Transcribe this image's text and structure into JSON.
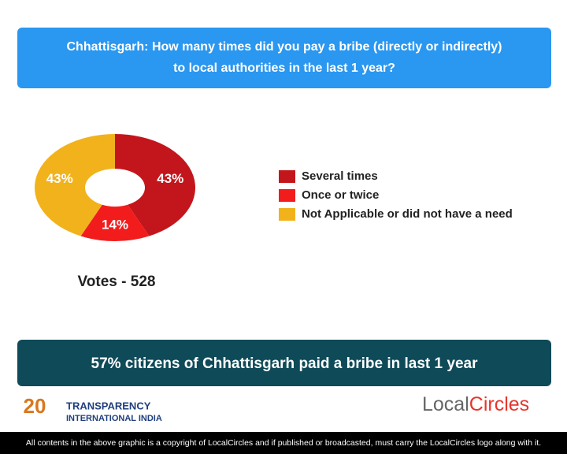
{
  "chart_data": {
    "type": "pie",
    "title": [
      "Chhattisgarh: How many times did you pay a bribe (directly or indirectly)",
      "to local authorities in the last 1 year?"
    ],
    "categories": [
      "Several times",
      "Once or twice",
      "Not Applicable or did not have a need"
    ],
    "values": [
      43,
      14,
      43
    ],
    "value_labels": [
      "43%",
      "14%",
      "43%"
    ],
    "colors": [
      "#c3161c",
      "#f21c1c",
      "#f1b21c"
    ],
    "donut": true,
    "votes": "Votes - 528"
  },
  "headline": "57% citizens of Chhattisgarh paid a bribe in last 1 year",
  "logos": {
    "ti_mark": "20",
    "ti_name": [
      "TRANSPARENCY",
      "INTERNATIONAL INDIA"
    ],
    "lc_name": [
      "Local",
      "Circles"
    ]
  },
  "footer": "All contents in the above graphic is a copyright of LocalCircles and if published or broadcasted, must carry the LocalCircles logo along with it."
}
